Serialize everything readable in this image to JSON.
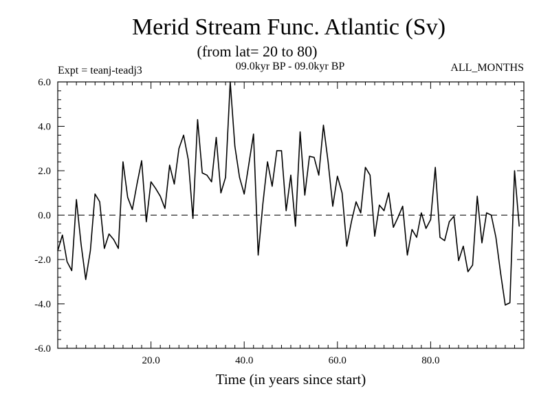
{
  "chart_data": {
    "type": "line",
    "title": "Merid Stream Func. Atlantic (Sv)",
    "subtitle": "(from lat= 20 to 80)",
    "left_label": "Expt = teanj-teadj3",
    "center_label": "09.0kyr BP - 09.0kyr BP",
    "right_label": "ALL_MONTHS",
    "xlabel": "Time (in years since start)",
    "ylabel": "",
    "xlim": [
      0,
      100
    ],
    "ylim": [
      -6,
      6
    ],
    "x_ticks": [
      20,
      40,
      60,
      80
    ],
    "x_tick_labels": [
      "20.0",
      "40.0",
      "60.0",
      "80.0"
    ],
    "y_ticks": [
      -6,
      -4,
      -2,
      0,
      2,
      4,
      6
    ],
    "y_tick_labels": [
      "-6.0",
      "-4.0",
      "-2.0",
      "0.0",
      "2.0",
      "4.0",
      "6.0"
    ],
    "reference_line": {
      "y": 0,
      "style": "dashed"
    },
    "series": [
      {
        "name": "Merid Stream Func.",
        "color": "#000000",
        "x": [
          0,
          1,
          2,
          3,
          4,
          5,
          6,
          7,
          8,
          9,
          10,
          11,
          12,
          13,
          14,
          15,
          16,
          17,
          18,
          19,
          20,
          21,
          22,
          23,
          24,
          25,
          26,
          27,
          28,
          29,
          30,
          31,
          32,
          33,
          34,
          35,
          36,
          37,
          38,
          39,
          40,
          41,
          42,
          43,
          44,
          45,
          46,
          47,
          48,
          49,
          50,
          51,
          52,
          53,
          54,
          55,
          56,
          57,
          58,
          59,
          60,
          61,
          62,
          63,
          64,
          65,
          66,
          67,
          68,
          69,
          70,
          71,
          72,
          73,
          74,
          75,
          76,
          77,
          78,
          79,
          80,
          81,
          82,
          83,
          84,
          85,
          86,
          87,
          88,
          89,
          90,
          91,
          92,
          93,
          94,
          95,
          96,
          97,
          98,
          99
        ],
        "values": [
          -1.6,
          -0.9,
          -2.1,
          -2.5,
          0.7,
          -1.3,
          -2.9,
          -1.6,
          0.95,
          0.6,
          -1.5,
          -0.85,
          -1.1,
          -1.5,
          2.4,
          0.8,
          0.25,
          1.4,
          2.45,
          -0.3,
          1.5,
          1.2,
          0.85,
          0.3,
          2.25,
          1.4,
          3.0,
          3.6,
          2.5,
          -0.15,
          4.3,
          1.9,
          1.8,
          1.5,
          3.5,
          1.0,
          1.7,
          6.0,
          3.1,
          1.7,
          0.95,
          2.3,
          3.65,
          -1.8,
          0.5,
          2.4,
          1.3,
          2.9,
          2.9,
          0.2,
          1.8,
          -0.5,
          3.75,
          0.9,
          2.65,
          2.6,
          1.8,
          4.05,
          2.4,
          0.4,
          1.75,
          1.0,
          -1.4,
          -0.3,
          0.6,
          0.1,
          2.15,
          1.8,
          -0.95,
          0.45,
          0.2,
          1.0,
          -0.55,
          -0.1,
          0.4,
          -1.8,
          -0.65,
          -1.0,
          0.1,
          -0.6,
          -0.2,
          2.15,
          -1.0,
          -1.15,
          -0.3,
          -0.05,
          -2.05,
          -1.4,
          -2.55,
          -2.25,
          0.85,
          -1.25,
          0.1,
          0.0,
          -1.0,
          -2.6,
          -4.05,
          -3.95,
          2.0,
          -0.5
        ]
      }
    ]
  }
}
